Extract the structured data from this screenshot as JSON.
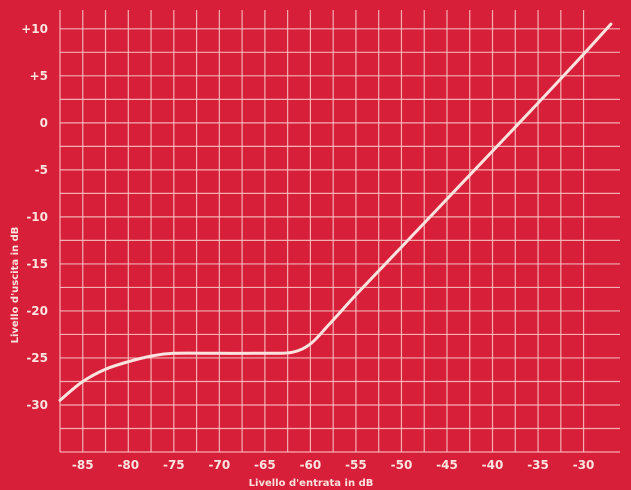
{
  "colors": {
    "background": "#d81f3a",
    "grid": "#f6c9c6",
    "curve": "#fbe3df",
    "text": "#fbe3df"
  },
  "chart_data": {
    "type": "line",
    "title": "",
    "xlabel": "Livello d'entrata in dB",
    "ylabel": "Livello d'uscita in dB",
    "xlim": [
      -87.5,
      -26
    ],
    "ylim": [
      -35,
      12
    ],
    "grid": true,
    "x_ticks": [
      -85,
      -80,
      -75,
      -70,
      -65,
      -60,
      -55,
      -50,
      -45,
      -40,
      -35,
      -30
    ],
    "x_tick_labels": [
      "-85",
      "-80",
      "-75",
      "-70",
      "-65",
      "-60",
      "-55",
      "-50",
      "-45",
      "-40",
      "-35",
      "-30"
    ],
    "y_ticks": [
      10,
      5,
      0,
      -5,
      -10,
      -15,
      -20,
      -25,
      -30
    ],
    "y_tick_labels": [
      "+10",
      "+5",
      "0",
      "-5",
      "-10",
      "-15",
      "-20",
      "-25",
      "-30"
    ],
    "series": [
      {
        "x": [
          -87.5,
          -85,
          -82.5,
          -80,
          -77.5,
          -75,
          -70,
          -65,
          -62,
          -60,
          -58,
          -55,
          -50,
          -45,
          -40,
          -35,
          -30,
          -27
        ],
        "y": [
          -29.5,
          -27.5,
          -26.2,
          -25.4,
          -24.8,
          -24.5,
          -24.5,
          -24.5,
          -24.4,
          -23.5,
          -21.5,
          -18.3,
          -13.2,
          -8.1,
          -3.0,
          2.1,
          7.3,
          10.5
        ]
      }
    ]
  }
}
